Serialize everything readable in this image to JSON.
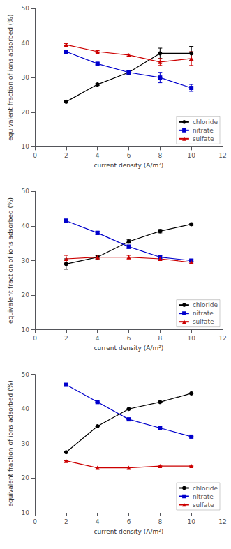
{
  "chart_data": [
    {
      "type": "line",
      "xlabel": "current density (A/m²)",
      "ylabel": "equivalent fraction of ions adsorbed (%)",
      "x": [
        2,
        4,
        6,
        8,
        10
      ],
      "xlim": [
        0,
        12
      ],
      "xticks": [
        0,
        2,
        4,
        6,
        8,
        10,
        12
      ],
      "ylim": [
        10,
        50
      ],
      "yticks": [
        10,
        20,
        30,
        40,
        50
      ],
      "grid": false,
      "legend": "lower right",
      "series": [
        {
          "name": "chloride",
          "color": "#000000",
          "marker": "circle",
          "values": [
            23.0,
            28.0,
            31.5,
            37.0,
            37.0
          ],
          "errors": [
            0.3,
            0.3,
            0.5,
            1.5,
            2.0
          ]
        },
        {
          "name": "nitrate",
          "color": "#0000cc",
          "marker": "square",
          "values": [
            37.5,
            34.0,
            31.5,
            30.0,
            27.0
          ],
          "errors": [
            0.3,
            0.3,
            0.5,
            1.5,
            1.0
          ]
        },
        {
          "name": "sulfate",
          "color": "#cc0000",
          "marker": "triangle",
          "values": [
            39.5,
            37.5,
            36.5,
            34.5,
            35.5
          ],
          "errors": [
            0.3,
            0.3,
            0.3,
            1.0,
            2.0
          ]
        }
      ]
    },
    {
      "type": "line",
      "xlabel": "current density (A/m²)",
      "ylabel": "equivalent fraction of ions adsorbed (%)",
      "x": [
        2,
        4,
        6,
        8,
        10
      ],
      "xlim": [
        0,
        12
      ],
      "xticks": [
        0,
        2,
        4,
        6,
        8,
        10,
        12
      ],
      "ylim": [
        10,
        50
      ],
      "yticks": [
        10,
        20,
        30,
        40,
        50
      ],
      "grid": false,
      "legend": "lower right",
      "series": [
        {
          "name": "chloride",
          "color": "#000000",
          "marker": "circle",
          "values": [
            29.0,
            31.0,
            35.5,
            38.5,
            40.5
          ],
          "errors": [
            1.5,
            0.5,
            0.5,
            0.5,
            0.3
          ]
        },
        {
          "name": "nitrate",
          "color": "#0000cc",
          "marker": "square",
          "values": [
            41.5,
            38.0,
            34.0,
            31.0,
            30.0
          ],
          "errors": [
            0.5,
            0.5,
            0.5,
            0.5,
            0.3
          ]
        },
        {
          "name": "sulfate",
          "color": "#cc0000",
          "marker": "triangle",
          "values": [
            30.5,
            31.0,
            31.0,
            30.5,
            29.5
          ],
          "errors": [
            1.0,
            0.5,
            0.5,
            0.5,
            0.3
          ]
        }
      ]
    },
    {
      "type": "line",
      "xlabel": "current density (A/m²)",
      "ylabel": "equivalent fraction of ions adsorbed (%)",
      "x": [
        2,
        4,
        6,
        8,
        10
      ],
      "xlim": [
        0,
        12
      ],
      "xticks": [
        0,
        2,
        4,
        6,
        8,
        10,
        12
      ],
      "ylim": [
        10,
        50
      ],
      "yticks": [
        10,
        20,
        30,
        40,
        50
      ],
      "grid": false,
      "legend": "lower right",
      "series": [
        {
          "name": "chloride",
          "color": "#000000",
          "marker": "circle",
          "values": [
            27.5,
            35.0,
            40.0,
            42.0,
            44.5
          ],
          "errors": [
            0.0,
            0.0,
            0.0,
            0.0,
            0.0
          ]
        },
        {
          "name": "nitrate",
          "color": "#0000cc",
          "marker": "square",
          "values": [
            47.0,
            42.0,
            37.0,
            34.5,
            32.0
          ],
          "errors": [
            0.0,
            0.0,
            0.0,
            0.0,
            0.0
          ]
        },
        {
          "name": "sulfate",
          "color": "#cc0000",
          "marker": "triangle",
          "values": [
            25.0,
            23.0,
            23.0,
            23.5,
            23.5
          ],
          "errors": [
            0.0,
            0.0,
            0.0,
            0.0,
            0.0
          ]
        }
      ]
    }
  ]
}
